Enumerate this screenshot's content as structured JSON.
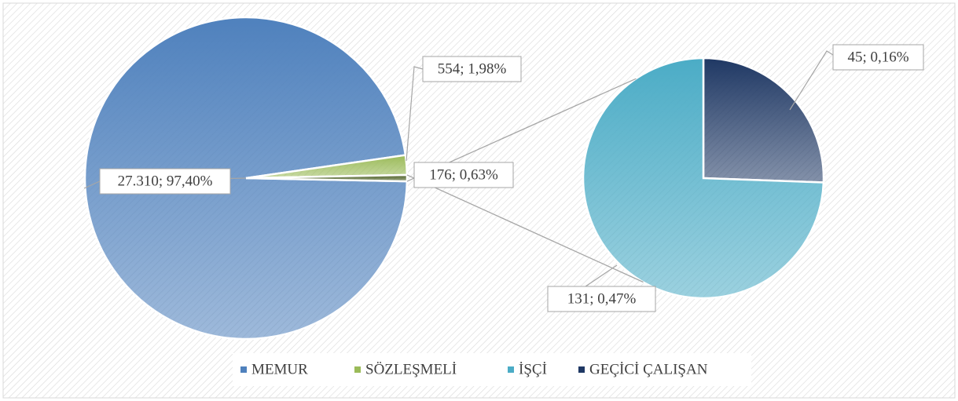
{
  "chart_data": {
    "type": "pie-of-pie",
    "primary": {
      "categories": [
        "MEMUR",
        "SÖZLEŞMELİ",
        null
      ],
      "values": [
        27310,
        554,
        176
      ],
      "value_labels": [
        "27.310; 97,40%",
        "554; 1,98%",
        "176; 0,63%"
      ],
      "colors": [
        "#4f81bd",
        "#9bbb59",
        "#4f6228"
      ]
    },
    "secondary": {
      "categories": [
        "İŞÇİ",
        "GEÇİCİ ÇALIŞAN"
      ],
      "values": [
        131,
        45
      ],
      "value_labels": [
        "131; 0,47%",
        "45; 0,16%"
      ],
      "colors": [
        "#4bacc6",
        "#1f3864"
      ]
    },
    "legend": "bottom"
  }
}
